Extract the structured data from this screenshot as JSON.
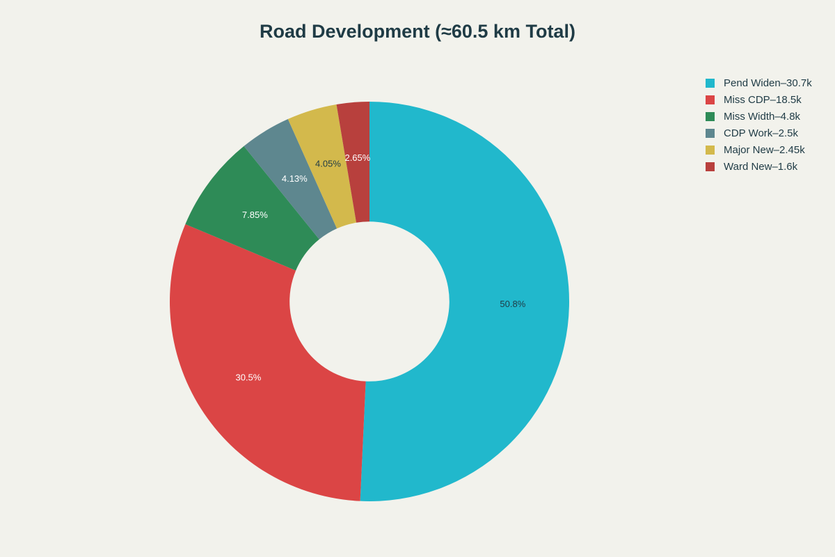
{
  "title": "Road Development (≈60.5 km Total)",
  "chart_data": {
    "type": "pie",
    "hole": 0.4,
    "title": "Road Development (≈60.5 km Total)",
    "legend_position": "top-right",
    "slices": [
      {
        "label": "Pend Widen–30.7k",
        "value": 30.7,
        "percent_label": "50.8%",
        "color": "#21b8cc",
        "label_color": "#1f3b45"
      },
      {
        "label": "Miss CDP–18.5k",
        "value": 18.5,
        "percent_label": "30.5%",
        "color": "#db4545",
        "label_color": "#ffffff"
      },
      {
        "label": "Miss Width–4.8k",
        "value": 4.75,
        "percent_label": "7.85%",
        "color": "#2e8b57",
        "label_color": "#ffffff"
      },
      {
        "label": "CDP Work–2.5k",
        "value": 2.5,
        "percent_label": "4.13%",
        "color": "#5e878f",
        "label_color": "#ffffff"
      },
      {
        "label": "Major New–2.45k",
        "value": 2.45,
        "percent_label": "4.05%",
        "color": "#d3b94c",
        "label_color": "#1f3b45"
      },
      {
        "label": "Ward New–1.6k",
        "value": 1.6,
        "percent_label": "2.65%",
        "color": "#b8403d",
        "label_color": "#ffffff"
      }
    ]
  }
}
